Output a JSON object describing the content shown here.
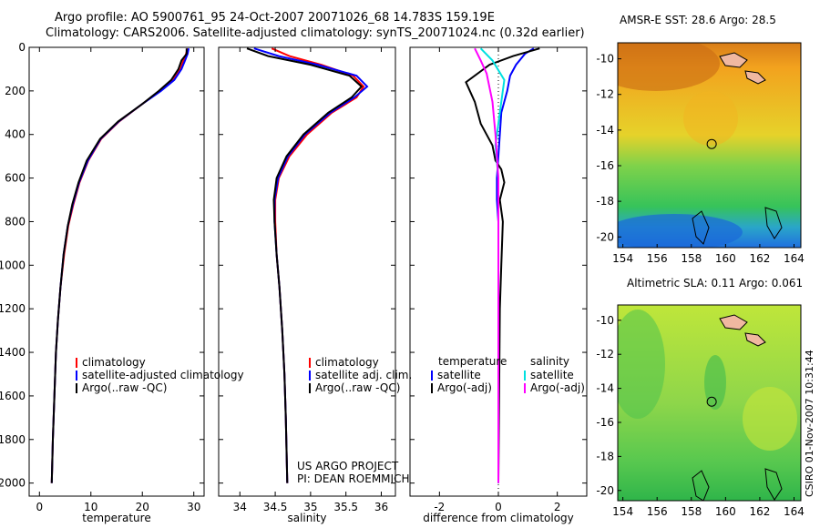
{
  "header": {
    "title_line1": "Argo profile: AO 5900761_95 24-Oct-2007 20071026_68 14.783S 159.19E",
    "title_line2": "Climatology: CARS2006. Satellite-adjusted climatology: synTS_20071024.nc (0.32d earlier)"
  },
  "footer": {
    "project": "US ARGO PROJECT",
    "pi": "PI: DEAN ROEMMICH",
    "stamp": "CSIRO 01-Nov-2007 10:31:44"
  },
  "colors": {
    "climatology": "#ff0000",
    "satellite": "#0000ff",
    "argo": "#000000",
    "salinity_sat": "#00e0e0",
    "salinity_argo": "#ff00ff"
  },
  "chart_data": [
    {
      "type": "line",
      "xlabel": "temperature",
      "ylabel": "",
      "xlim": [
        -2,
        32
      ],
      "ylim": [
        2060,
        0
      ],
      "xticks": [
        0,
        10,
        20,
        30
      ],
      "yticks": [
        0,
        200,
        400,
        600,
        800,
        1000,
        1200,
        1400,
        1600,
        1800,
        2000
      ],
      "legend": [
        "climatology",
        "satellite-adjusted climatology",
        "Argo(..raw -QC)"
      ],
      "legend_placement": "bottom-right",
      "series": [
        {
          "name": "climatology",
          "color": "#ff0000",
          "x": [
            28.8,
            28.5,
            28.0,
            27.4,
            26.0,
            23.5,
            20.0,
            15.5,
            12.0,
            9.5,
            7.8,
            6.6,
            5.6,
            4.8,
            4.1,
            3.6,
            3.2,
            2.9,
            2.6,
            2.4
          ],
          "y": [
            5,
            30,
            60,
            100,
            150,
            200,
            260,
            340,
            420,
            520,
            620,
            720,
            820,
            950,
            1100,
            1250,
            1400,
            1600,
            1800,
            2000
          ]
        },
        {
          "name": "satellite-adjusted climatology",
          "color": "#0000ff",
          "x": [
            29.0,
            28.8,
            28.3,
            27.6,
            26.2,
            23.6,
            20.0,
            15.4,
            11.9,
            9.4,
            7.7,
            6.5,
            5.5,
            4.7,
            4.1,
            3.6,
            3.2,
            2.9,
            2.6,
            2.4
          ],
          "y": [
            5,
            30,
            60,
            100,
            150,
            200,
            260,
            340,
            420,
            520,
            620,
            720,
            820,
            950,
            1100,
            1250,
            1400,
            1600,
            1800,
            2000
          ]
        },
        {
          "name": "Argo(..raw -QC)",
          "color": "#000000",
          "x": [
            28.6,
            28.6,
            27.6,
            27.0,
            25.6,
            23.2,
            20.0,
            15.3,
            11.8,
            9.2,
            7.6,
            6.4,
            5.5,
            4.7,
            4.1,
            3.6,
            3.2,
            2.9,
            2.6,
            2.4
          ],
          "y": [
            5,
            30,
            60,
            100,
            150,
            200,
            260,
            340,
            420,
            520,
            620,
            720,
            820,
            950,
            1100,
            1250,
            1400,
            1600,
            1800,
            2000
          ]
        }
      ]
    },
    {
      "type": "line",
      "xlabel": "salinity",
      "ylabel": "",
      "xlim": [
        33.7,
        36.2
      ],
      "ylim": [
        2060,
        0
      ],
      "xticks": [
        34,
        34.5,
        35,
        35.5,
        36
      ],
      "legend": [
        "climatology",
        "satellite adj. clim.",
        "Argo(..raw -QC)"
      ],
      "legend_placement": "bottom-right",
      "series": [
        {
          "name": "climatology",
          "color": "#ff0000",
          "x": [
            34.45,
            34.7,
            35.15,
            35.6,
            35.75,
            35.65,
            35.3,
            34.95,
            34.7,
            34.55,
            34.5,
            34.5,
            34.52,
            34.56,
            34.6,
            34.63,
            34.65,
            34.66,
            34.67
          ],
          "y": [
            5,
            40,
            80,
            130,
            180,
            230,
            300,
            400,
            500,
            600,
            700,
            800,
            950,
            1100,
            1300,
            1500,
            1700,
            1850,
            2000
          ]
        },
        {
          "name": "satellite adj. clim.",
          "color": "#0000ff",
          "x": [
            34.2,
            34.55,
            35.1,
            35.65,
            35.8,
            35.62,
            35.28,
            34.92,
            34.68,
            34.54,
            34.49,
            34.49,
            34.52,
            34.56,
            34.6,
            34.63,
            34.65,
            34.66,
            34.67
          ],
          "y": [
            5,
            40,
            80,
            130,
            180,
            230,
            300,
            400,
            500,
            600,
            700,
            800,
            950,
            1100,
            1300,
            1500,
            1700,
            1850,
            2000
          ]
        },
        {
          "name": "Argo(..raw -QC)",
          "color": "#000000",
          "x": [
            34.1,
            34.4,
            35.0,
            35.55,
            35.72,
            35.58,
            35.25,
            34.9,
            34.66,
            34.52,
            34.48,
            34.49,
            34.52,
            34.56,
            34.6,
            34.63,
            34.65,
            34.66,
            34.67
          ],
          "y": [
            5,
            40,
            80,
            130,
            180,
            230,
            300,
            400,
            500,
            600,
            700,
            800,
            950,
            1100,
            1300,
            1500,
            1700,
            1850,
            2000
          ]
        }
      ]
    },
    {
      "type": "line",
      "xlabel": "difference from climatology",
      "ylabel": "",
      "xlim": [
        -3,
        3
      ],
      "ylim": [
        2060,
        0
      ],
      "xticks": [
        -2,
        0,
        2
      ],
      "legend": [
        "temperature",
        "satellite",
        "Argo(-adj)",
        "salinity",
        "satellite",
        "Argo(-adj)"
      ],
      "legend_placement": "bottom",
      "series": [
        {
          "name": "satellite",
          "color": "#0000ff",
          "x": [
            1.2,
            0.9,
            0.6,
            0.4,
            0.3,
            0.1,
            0.05,
            0.0,
            -0.05,
            -0.05,
            0.0,
            0.0,
            0.0,
            0.0
          ],
          "y": [
            5,
            30,
            80,
            130,
            200,
            300,
            400,
            500,
            600,
            700,
            800,
            1000,
            1500,
            2000
          ]
        },
        {
          "name": "Argo(-adj)",
          "color": "#000000",
          "x": [
            1.4,
            0.5,
            -0.3,
            -1.1,
            -0.8,
            -0.6,
            -0.2,
            -0.1,
            0.1,
            0.2,
            0.05,
            0.15,
            0.1,
            0.05,
            0.0
          ],
          "y": [
            5,
            40,
            80,
            160,
            250,
            350,
            450,
            520,
            560,
            620,
            700,
            800,
            1000,
            1200,
            2000
          ]
        },
        {
          "name": "satellite",
          "color": "#00e0e0",
          "x": [
            -0.6,
            -0.2,
            0.2,
            0.05,
            -0.1,
            0.0,
            0.0,
            0.0,
            0.0
          ],
          "y": [
            5,
            60,
            150,
            300,
            450,
            600,
            800,
            1200,
            2000
          ]
        },
        {
          "name": "Argo(-adj)",
          "color": "#ff00ff",
          "x": [
            -0.8,
            -0.6,
            -0.4,
            -0.2,
            -0.1,
            0.0,
            0.0
          ],
          "y": [
            5,
            60,
            120,
            250,
            400,
            600,
            2000
          ]
        }
      ]
    },
    {
      "type": "heatmap",
      "title": "AMSR-E SST: 28.6 Argo: 28.5",
      "xticks": [
        154,
        156,
        158,
        160,
        162,
        164
      ],
      "yticks": [
        -10,
        -12,
        -14,
        -16,
        -18,
        -20
      ],
      "marker": {
        "lon": 159.19,
        "lat": -14.783
      }
    },
    {
      "type": "heatmap",
      "title": "Altimetric SLA: 0.11 Argo: 0.061",
      "xticks": [
        154,
        156,
        158,
        160,
        162,
        164
      ],
      "yticks": [
        -10,
        -12,
        -14,
        -16,
        -18,
        -20
      ],
      "marker": {
        "lon": 159.19,
        "lat": -14.783
      }
    }
  ]
}
